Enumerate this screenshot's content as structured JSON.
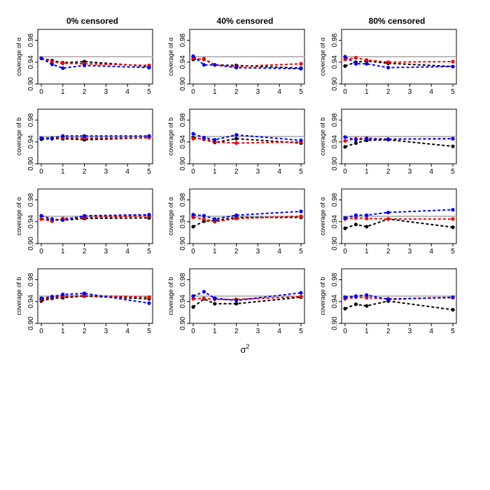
{
  "chart_data": {
    "type": "line",
    "layout": "4 rows x 3 columns panel grid",
    "column_titles": [
      "0% censored",
      "40% censored",
      "80% censored"
    ],
    "row_ylabels": [
      "coverage of α",
      "coverage of b",
      "coverage of α",
      "coverage of b"
    ],
    "xlabel": "σ",
    "xlabel_superscript": "2",
    "x_ticks": [
      "0",
      "1",
      "2",
      "3",
      "4",
      "5"
    ],
    "y_ticks": [
      "0.90",
      "0.94",
      "0.98"
    ],
    "xlim": [
      0,
      5
    ],
    "ylim": [
      0.9,
      1.0
    ],
    "reference_line": 0.95,
    "x": [
      0,
      0.5,
      1,
      2,
      5
    ],
    "series_colors": {
      "black": "#000000",
      "red": "#ee0000",
      "blue": "#0000ee",
      "reference": "#bbbbbb"
    },
    "panels": [
      {
        "row": 0,
        "col": 0,
        "series": [
          {
            "name": "black",
            "values": [
              0.947,
              0.943,
              0.939,
              0.941,
              0.932
            ]
          },
          {
            "name": "red",
            "values": [
              0.947,
              0.941,
              0.938,
              0.937,
              0.934
            ]
          },
          {
            "name": "blue",
            "values": [
              0.947,
              0.936,
              0.929,
              0.934,
              0.93
            ]
          }
        ]
      },
      {
        "row": 0,
        "col": 1,
        "series": [
          {
            "name": "black",
            "values": [
              0.945,
              0.946,
              0.935,
              0.934,
              0.929
            ]
          },
          {
            "name": "red",
            "values": [
              0.947,
              0.945,
              0.935,
              0.932,
              0.937
            ]
          },
          {
            "name": "blue",
            "values": [
              0.951,
              0.935,
              0.935,
              0.93,
              0.928
            ]
          }
        ]
      },
      {
        "row": 0,
        "col": 2,
        "series": [
          {
            "name": "black",
            "values": [
              0.933,
              0.94,
              0.942,
              0.938,
              0.932
            ]
          },
          {
            "name": "red",
            "values": [
              0.945,
              0.948,
              0.944,
              0.94,
              0.941
            ]
          },
          {
            "name": "blue",
            "values": [
              0.95,
              0.937,
              0.937,
              0.93,
              0.932
            ]
          }
        ]
      },
      {
        "row": 1,
        "col": 0,
        "series": [
          {
            "name": "black",
            "values": [
              0.945,
              0.946,
              0.946,
              0.944,
              0.948
            ]
          },
          {
            "name": "red",
            "values": [
              0.947,
              0.947,
              0.948,
              0.947,
              0.948
            ]
          },
          {
            "name": "blue",
            "values": [
              0.947,
              0.947,
              0.951,
              0.951,
              0.951
            ]
          }
        ]
      },
      {
        "row": 1,
        "col": 1,
        "series": [
          {
            "name": "black",
            "values": [
              0.948,
              0.945,
              0.939,
              0.946,
              0.938
            ]
          },
          {
            "name": "red",
            "values": [
              0.946,
              0.946,
              0.94,
              0.938,
              0.94
            ]
          },
          {
            "name": "blue",
            "values": [
              0.955,
              0.948,
              0.944,
              0.953,
              0.943
            ]
          }
        ]
      },
      {
        "row": 1,
        "col": 2,
        "series": [
          {
            "name": "black",
            "values": [
              0.931,
              0.938,
              0.943,
              0.944,
              0.932
            ]
          },
          {
            "name": "red",
            "values": [
              0.942,
              0.946,
              0.947,
              0.945,
              0.946
            ]
          },
          {
            "name": "blue",
            "values": [
              0.949,
              0.944,
              0.946,
              0.945,
              0.946
            ]
          }
        ]
      },
      {
        "row": 2,
        "col": 0,
        "series": [
          {
            "name": "black",
            "values": [
              0.945,
              0.944,
              0.943,
              0.946,
              0.947
            ]
          },
          {
            "name": "red",
            "values": [
              0.945,
              0.941,
              0.946,
              0.948,
              0.951
            ]
          },
          {
            "name": "blue",
            "values": [
              0.951,
              0.945,
              0.943,
              0.951,
              0.953
            ]
          }
        ]
      },
      {
        "row": 2,
        "col": 1,
        "series": [
          {
            "name": "black",
            "values": [
              0.931,
              0.941,
              0.942,
              0.948,
              0.948
            ]
          },
          {
            "name": "red",
            "values": [
              0.948,
              0.945,
              0.94,
              0.946,
              0.95
            ]
          },
          {
            "name": "blue",
            "values": [
              0.953,
              0.951,
              0.945,
              0.952,
              0.959
            ]
          }
        ]
      },
      {
        "row": 2,
        "col": 2,
        "series": [
          {
            "name": "black",
            "values": [
              0.928,
              0.935,
              0.931,
              0.945,
              0.93
            ]
          },
          {
            "name": "red",
            "values": [
              0.945,
              0.947,
              0.946,
              0.945,
              0.945
            ]
          },
          {
            "name": "blue",
            "values": [
              0.947,
              0.952,
              0.952,
              0.957,
              0.962
            ]
          }
        ]
      },
      {
        "row": 3,
        "col": 0,
        "series": [
          {
            "name": "black",
            "values": [
              0.941,
              0.946,
              0.947,
              0.95,
              0.945
            ]
          },
          {
            "name": "red",
            "values": [
              0.944,
              0.948,
              0.95,
              0.951,
              0.948
            ]
          },
          {
            "name": "blue",
            "values": [
              0.946,
              0.949,
              0.953,
              0.955,
              0.937
            ]
          }
        ]
      },
      {
        "row": 3,
        "col": 1,
        "series": [
          {
            "name": "black",
            "values": [
              0.93,
              0.945,
              0.936,
              0.936,
              0.948
            ]
          },
          {
            "name": "red",
            "values": [
              0.945,
              0.946,
              0.944,
              0.944,
              0.949
            ]
          },
          {
            "name": "blue",
            "values": [
              0.95,
              0.958,
              0.946,
              0.942,
              0.956
            ]
          }
        ]
      },
      {
        "row": 3,
        "col": 2,
        "series": [
          {
            "name": "black",
            "values": [
              0.927,
              0.935,
              0.932,
              0.941,
              0.925
            ]
          },
          {
            "name": "red",
            "values": [
              0.945,
              0.948,
              0.947,
              0.945,
              0.947
            ]
          },
          {
            "name": "blue",
            "values": [
              0.948,
              0.95,
              0.952,
              0.944,
              0.948
            ]
          }
        ]
      }
    ]
  }
}
